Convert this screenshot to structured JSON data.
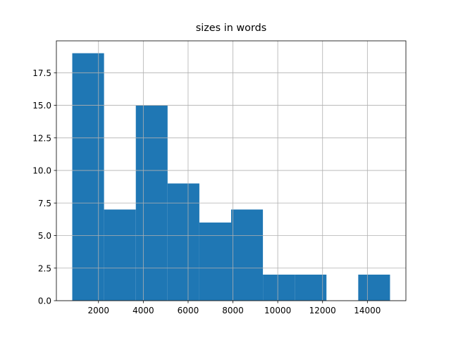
{
  "chart_data": {
    "type": "histogram",
    "title": "sizes in words",
    "bins": [
      830,
      2248,
      3666,
      5084,
      6502,
      7920,
      9338,
      10756,
      12174,
      13592,
      15010
    ],
    "values": [
      19,
      7,
      15,
      9,
      6,
      7,
      2,
      2,
      0,
      2
    ],
    "color": "#1f77b4",
    "xlim": [
      121,
      15719
    ],
    "xticks": [
      2000,
      4000,
      6000,
      8000,
      10000,
      12000,
      14000
    ],
    "ylim": [
      0,
      19.95
    ],
    "yticks": [
      {
        "value": 0,
        "label": "0.0"
      },
      2.5,
      {
        "value": 5,
        "label": "5.0"
      },
      7.5,
      {
        "value": 10,
        "label": "10.0"
      },
      12.5,
      {
        "value": 15,
        "label": "15.0"
      },
      17.5
    ],
    "grid": true
  }
}
